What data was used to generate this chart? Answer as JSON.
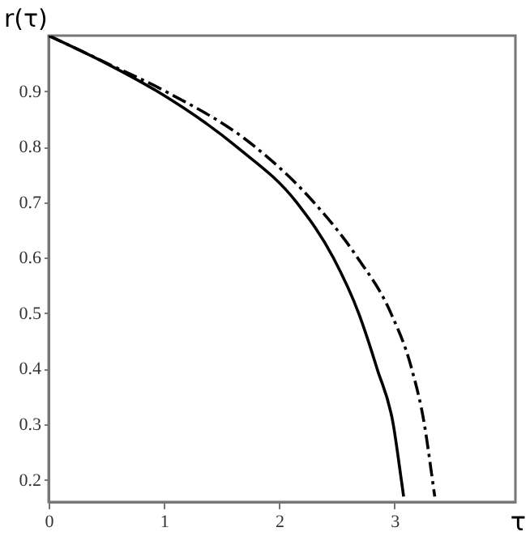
{
  "chart_data": {
    "type": "line",
    "xlabel": "τ",
    "ylabel": "r(τ)",
    "xlim": [
      0,
      4.05
    ],
    "ylim": [
      0.16,
      1.0
    ],
    "xticks": [
      0,
      1,
      2,
      3
    ],
    "yticks": [
      0.2,
      0.3,
      0.4,
      0.5,
      0.6,
      0.7,
      0.8,
      0.9
    ],
    "grid": false,
    "marker": "none",
    "series": [
      {
        "color": "#000000",
        "line_style": "solid",
        "x": [
          0,
          0.5,
          0.94,
          1.63,
          2.15,
          2.47,
          2.69,
          2.85,
          2.99,
          3.06,
          3.08
        ],
        "values": [
          1.0,
          0.95,
          0.9,
          0.8,
          0.7,
          0.6,
          0.5,
          0.4,
          0.3,
          0.2,
          0.17
        ]
      },
      {
        "color": "#000000",
        "line_style": "dashdot",
        "x": [
          0,
          0.51,
          1.01,
          1.79,
          2.3,
          2.68,
          2.97,
          3.15,
          3.26,
          3.33,
          3.35
        ],
        "values": [
          1.0,
          0.95,
          0.9,
          0.8,
          0.7,
          0.6,
          0.5,
          0.4,
          0.3,
          0.2,
          0.17
        ]
      }
    ]
  }
}
